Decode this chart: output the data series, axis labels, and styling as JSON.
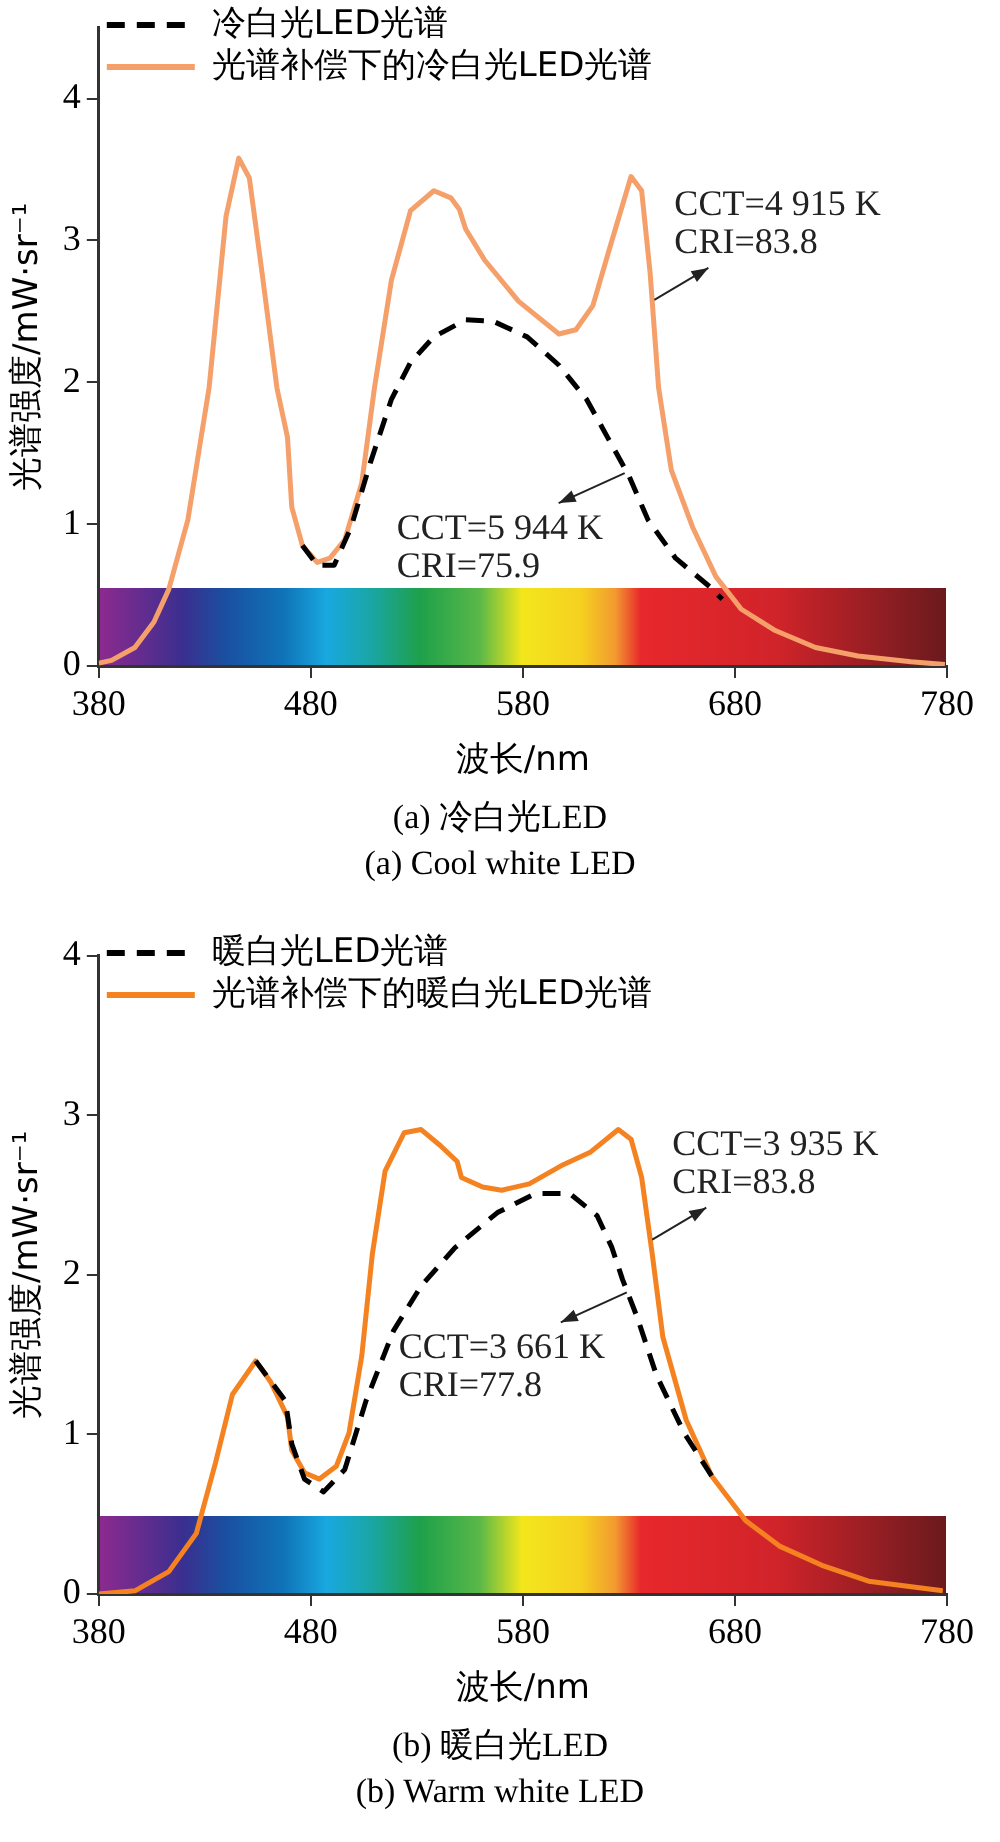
{
  "chart_data": [
    {
      "type": "line",
      "title": "(a) 冷白光LED",
      "subtitle": "(a) Cool white LED",
      "xlabel": "波长/nm",
      "ylabel": "光谱强度/mW·sr⁻¹",
      "xlim": [
        380,
        780
      ],
      "xticks": [
        380,
        480,
        580,
        680,
        780
      ],
      "ylim": [
        0,
        4.5
      ],
      "yticks": [
        0,
        1,
        2,
        3,
        4
      ],
      "legend": "top left",
      "series": [
        {
          "name": "冷白光LED光谱",
          "color": "#000000",
          "line_style": "dashed",
          "x": [
            476,
            483,
            491,
            499,
            508,
            518,
            527,
            538,
            553,
            566,
            582,
            597,
            610,
            620,
            630,
            639,
            652,
            668,
            674
          ],
          "values": [
            0.85,
            0.71,
            0.71,
            0.98,
            1.43,
            1.88,
            2.14,
            2.32,
            2.44,
            2.43,
            2.32,
            2.12,
            1.88,
            1.61,
            1.34,
            1.03,
            0.76,
            0.56,
            0.47
          ]
        },
        {
          "name": "光谱补偿下的冷白光LED光谱",
          "color": "#f5a06a",
          "line_style": "solid",
          "x": [
            380,
            386,
            397,
            406,
            413,
            422,
            432,
            440,
            446,
            451,
            457,
            464,
            469,
            471,
            476,
            483,
            489,
            496,
            504,
            510,
            518,
            527,
            538,
            546,
            550,
            553,
            562,
            578,
            597,
            605,
            613,
            621,
            631,
            636,
            640,
            644,
            650,
            660,
            671,
            683,
            699,
            718,
            738,
            763,
            779
          ],
          "values": [
            0.02,
            0.04,
            0.13,
            0.31,
            0.54,
            1.03,
            1.96,
            3.17,
            3.58,
            3.44,
            2.77,
            1.96,
            1.61,
            1.12,
            0.85,
            0.73,
            0.76,
            0.89,
            1.29,
            1.96,
            2.72,
            3.21,
            3.35,
            3.3,
            3.22,
            3.08,
            2.86,
            2.57,
            2.34,
            2.37,
            2.54,
            2.95,
            3.45,
            3.35,
            2.77,
            1.96,
            1.38,
            0.98,
            0.63,
            0.4,
            0.25,
            0.13,
            0.07,
            0.03,
            0.01
          ]
        }
      ],
      "annotations": [
        {
          "text": "CCT=4 915 K\nCRI=83.8",
          "x": 642,
          "y": 2.58
        },
        {
          "text": "CCT=5 944 K\nCRI=75.9",
          "x": 628,
          "y": 1.36
        }
      ]
    },
    {
      "type": "line",
      "title": "(b) 暖白光LED",
      "subtitle": "(b) Warm white LED",
      "xlabel": "波长/nm",
      "ylabel": "光谱强度/mW·sr⁻¹",
      "xlim": [
        380,
        780
      ],
      "xticks": [
        380,
        480,
        580,
        680,
        780
      ],
      "ylim": [
        0,
        4
      ],
      "yticks": [
        0,
        1,
        2,
        3,
        4
      ],
      "legend": "top left",
      "series": [
        {
          "name": "暖白光LED光谱",
          "color": "#000000",
          "line_style": "dashed",
          "x": [
            454,
            468,
            471,
            477,
            486,
            496,
            506,
            519,
            532,
            548,
            568,
            586,
            602,
            615,
            622,
            627,
            634,
            643,
            656,
            669
          ],
          "values": [
            1.46,
            1.21,
            0.94,
            0.72,
            0.64,
            0.78,
            1.21,
            1.65,
            1.93,
            2.17,
            2.39,
            2.51,
            2.51,
            2.37,
            2.17,
            1.97,
            1.73,
            1.37,
            1.01,
            0.74
          ]
        },
        {
          "name": "光谱补偿下的暖白光LED光谱",
          "color": "#f58220",
          "line_style": "solid",
          "x": [
            380,
            397,
            413,
            426,
            435,
            443,
            454,
            461,
            469,
            471,
            477,
            484,
            492,
            498,
            504,
            509,
            515,
            524,
            532,
            541,
            549,
            551,
            561,
            570,
            583,
            599,
            612,
            625,
            631,
            636,
            641,
            646,
            657,
            669,
            685,
            701,
            721,
            743,
            778
          ],
          "values": [
            0,
            0.02,
            0.14,
            0.38,
            0.82,
            1.25,
            1.46,
            1.33,
            1.11,
            0.9,
            0.76,
            0.72,
            0.8,
            1.01,
            1.49,
            2.13,
            2.65,
            2.89,
            2.91,
            2.81,
            2.71,
            2.61,
            2.55,
            2.53,
            2.57,
            2.69,
            2.77,
            2.91,
            2.85,
            2.61,
            2.13,
            1.61,
            1.09,
            0.74,
            0.46,
            0.3,
            0.18,
            0.08,
            0.02
          ]
        }
      ],
      "annotations": [
        {
          "text": "CCT=3 935 K\nCRI=83.8",
          "x": 641,
          "y": 2.22
        },
        {
          "text": "CCT=3 661 K\nCRI=77.8",
          "x": 629,
          "y": 1.89
        }
      ]
    }
  ]
}
